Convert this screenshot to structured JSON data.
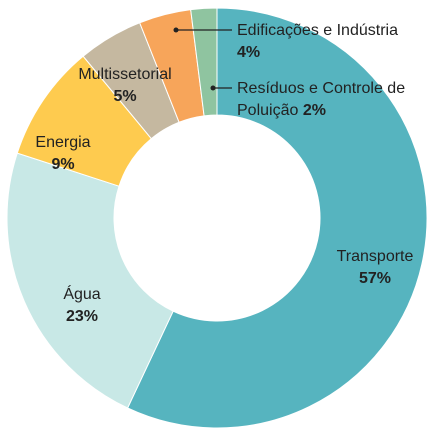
{
  "chart_data": {
    "type": "donut",
    "categories": [
      "Transporte",
      "Água",
      "Energia",
      "Multissetorial",
      "Edificações e Indústria",
      "Resíduos e Controle de Poluição"
    ],
    "values": [
      57,
      23,
      9,
      5,
      4,
      2
    ],
    "value_labels": [
      "57%",
      "23%",
      "9%",
      "5%",
      "4%",
      "2%"
    ],
    "colors": [
      "#56b4bf",
      "#c8e8e6",
      "#fecb4f",
      "#c5b8a0",
      "#f7a55a",
      "#8fc4a0"
    ]
  }
}
